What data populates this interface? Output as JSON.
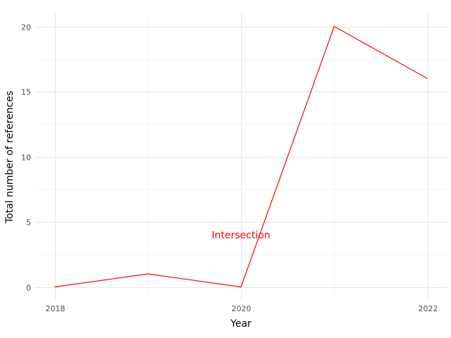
{
  "chart_data": {
    "type": "line",
    "title": "",
    "xlabel": "Year",
    "ylabel": "Total number of references",
    "x": [
      2018,
      2019,
      2020,
      2021,
      2022
    ],
    "series": [
      {
        "values": [
          0,
          1,
          0,
          20,
          16
        ],
        "color": "#ff0000"
      }
    ],
    "xlim": [
      2018,
      2022
    ],
    "ylim": [
      0,
      20
    ],
    "x_ticks": [
      "2018",
      "2020",
      "2022"
    ],
    "y_ticks": [
      "0",
      "5",
      "10",
      "15",
      "20"
    ],
    "x_tick_values": [
      2018,
      2020,
      2022
    ],
    "y_tick_values": [
      0,
      5,
      10,
      15,
      20
    ],
    "grid": true,
    "legend": "none",
    "annotations": [
      {
        "text": "Intersection",
        "x": 2020,
        "y": 4,
        "color": "#ff0000"
      }
    ],
    "colors": {
      "grid_major": "#e5e5e5",
      "grid_minor": "#f5f5f5"
    }
  }
}
